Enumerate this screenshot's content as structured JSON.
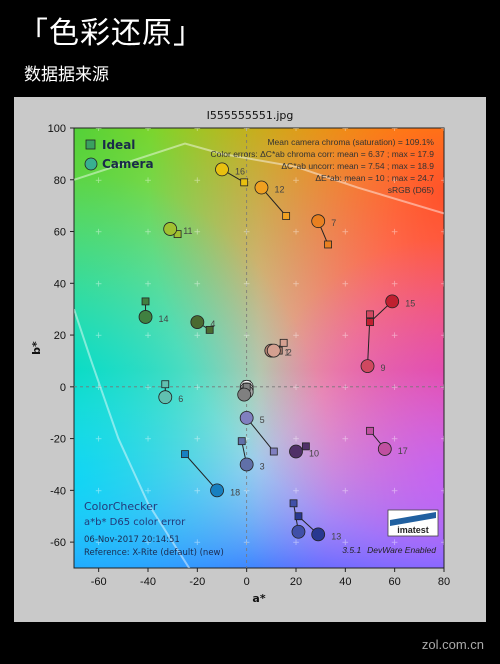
{
  "header": {
    "title": "「色彩还原」",
    "subtitle": "数据据来源"
  },
  "file_title": "I555555551.jpg",
  "watermark": "zol.com.cn",
  "chart_data": {
    "type": "scatter",
    "xlabel": "a*",
    "ylabel": "b*",
    "xlim": [
      -70,
      80
    ],
    "ylim": [
      -70,
      100
    ],
    "xticks": [
      -60,
      -40,
      -20,
      0,
      20,
      40,
      60,
      80
    ],
    "yticks": [
      -60,
      -40,
      -20,
      0,
      20,
      40,
      60,
      80,
      100
    ],
    "legend": {
      "position": "top-left",
      "ideal": "Ideal",
      "camera": "Camera"
    },
    "stats": [
      "Mean camera chroma (saturation) = 109.1%",
      "Color errors: ΔC*ab chroma corr:  mean = 6.37 ;  max = 17.9",
      "ΔC*ab uncorr:  mean = 7.54 ;  max = 18.9",
      "ΔE*ab:  mean = 10 ;  max = 24.7",
      "sRGB (D65)"
    ],
    "info": [
      "ColorChecker",
      "a*b* D65 color error",
      "06-Nov-2017 20:14:51",
      "Reference: X-Rite (default) (new)"
    ],
    "version": "3.5.1",
    "version_suffix": "DevWare Enabled",
    "logo_text": "imatest",
    "patches": [
      {
        "label": "1",
        "ideal": [
          13,
          14
        ],
        "camera": [
          10,
          14
        ],
        "color": "#b08070"
      },
      {
        "label": "2",
        "ideal": [
          15,
          17
        ],
        "camera": [
          11,
          14
        ],
        "color": "#d4a090"
      },
      {
        "label": "3",
        "ideal": [
          -2,
          -21
        ],
        "camera": [
          0,
          -30
        ],
        "color": "#6070a8"
      },
      {
        "label": "4",
        "ideal": [
          -15,
          22
        ],
        "camera": [
          -20,
          25
        ],
        "color": "#4a6a30"
      },
      {
        "label": "5",
        "ideal": [
          11,
          -25
        ],
        "camera": [
          0,
          -12
        ],
        "color": "#8080c0"
      },
      {
        "label": "6",
        "ideal": [
          -33,
          1
        ],
        "camera": [
          -33,
          -4
        ],
        "color": "#60c0b0"
      },
      {
        "label": "7",
        "ideal": [
          33,
          55
        ],
        "camera": [
          29,
          64
        ],
        "color": "#e88020"
      },
      {
        "label": "8",
        "ideal": [
          19,
          -45
        ],
        "camera": [
          21,
          -56
        ],
        "color": "#4050a8"
      },
      {
        "label": "9",
        "ideal": [
          50,
          28
        ],
        "camera": [
          49,
          8
        ],
        "color": "#d04860"
      },
      {
        "label": "10",
        "ideal": [
          24,
          -23
        ],
        "camera": [
          20,
          -25
        ],
        "color": "#503068"
      },
      {
        "label": "11",
        "ideal": [
          -28,
          59
        ],
        "camera": [
          -31,
          61
        ],
        "color": "#a0c030"
      },
      {
        "label": "12",
        "ideal": [
          16,
          66
        ],
        "camera": [
          6,
          77
        ],
        "color": "#f0a020"
      },
      {
        "label": "13",
        "ideal": [
          21,
          -50
        ],
        "camera": [
          29,
          -57
        ],
        "color": "#283890"
      },
      {
        "label": "14",
        "ideal": [
          -41,
          33
        ],
        "camera": [
          -41,
          27
        ],
        "color": "#408040"
      },
      {
        "label": "15",
        "ideal": [
          50,
          25
        ],
        "camera": [
          59,
          33
        ],
        "color": "#c02030"
      },
      {
        "label": "16",
        "ideal": [
          -1,
          79
        ],
        "camera": [
          -10,
          84
        ],
        "color": "#e8c010"
      },
      {
        "label": "17",
        "ideal": [
          50,
          -17
        ],
        "camera": [
          56,
          -24
        ],
        "color": "#c050a0"
      },
      {
        "label": "18",
        "ideal": [
          -25,
          -26
        ],
        "camera": [
          -12,
          -40
        ],
        "color": "#1880c0"
      },
      {
        "label": "",
        "ideal": [
          0,
          1
        ],
        "camera": [
          0,
          0
        ],
        "color": "#f4f4f4"
      },
      {
        "label": "",
        "ideal": [
          0,
          0
        ],
        "camera": [
          0,
          -1
        ],
        "color": "#d0d0d0"
      },
      {
        "label": "",
        "ideal": [
          0,
          0
        ],
        "camera": [
          0,
          -2
        ],
        "color": "#a8a8a8"
      },
      {
        "label": "",
        "ideal": [
          0,
          0
        ],
        "camera": [
          -1,
          -3
        ],
        "color": "#808080"
      }
    ]
  }
}
